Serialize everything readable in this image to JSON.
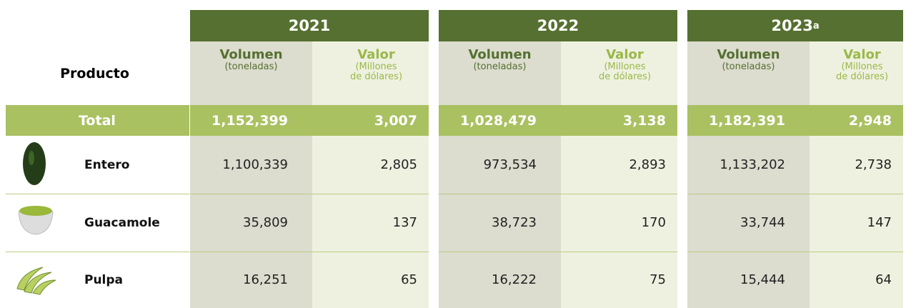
{
  "header": {
    "product": "Producto",
    "years": [
      {
        "year": "2021",
        "volume": "Volumen",
        "volume_unit": "(toneladas)",
        "value": "Valor",
        "value_unit": [
          "(Millones",
          "de dólares)"
        ]
      },
      {
        "year": "2022",
        "volume": "Volumen",
        "volume_unit": "(toneladas)",
        "value": "Valor",
        "value_unit": [
          "(Millones",
          "de dólares)"
        ]
      },
      {
        "year": "2023",
        "note": "a",
        "volume": "Volumen",
        "volume_unit": "(toneladas)",
        "value": "Valor",
        "value_unit": [
          "(Millones",
          "de dólares)"
        ]
      }
    ]
  },
  "table": {
    "rows": [
      {
        "label": "Total",
        "cells": [
          "1,152,399",
          "3,007",
          "1,028,479",
          "3,138",
          "1,182,391",
          "2,948"
        ]
      },
      {
        "label": "Entero",
        "cells": [
          "1,100,339",
          "2,805",
          "973,534",
          "2,893",
          "1,133,202",
          "2,738"
        ]
      },
      {
        "label": "Guacamole",
        "cells": [
          "35,809",
          "137",
          "38,723",
          "170",
          "33,744",
          "147"
        ]
      },
      {
        "label": "Pulpa",
        "cells": [
          "16,251",
          "65",
          "16,222",
          "75",
          "15,444",
          "64"
        ]
      }
    ]
  }
}
